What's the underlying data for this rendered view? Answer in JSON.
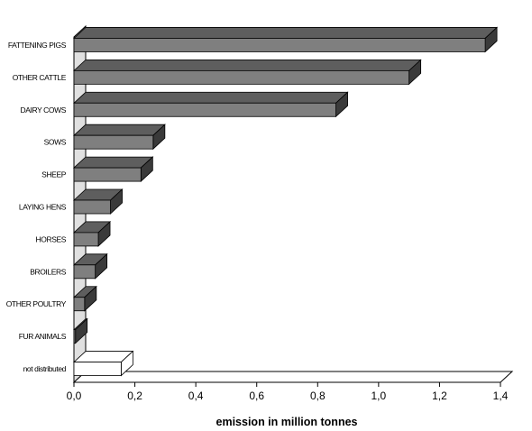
{
  "chart_data": {
    "type": "bar",
    "orientation": "horizontal",
    "three_d": true,
    "categories": [
      "FATTENING PIGS",
      "OTHER CATTLE",
      "DAIRY COWS",
      "SOWS",
      "SHEEP",
      "LAYING HENS",
      "HORSES",
      "BROILERS",
      "OTHER POULTRY",
      "FUR ANIMALS",
      "not distributed"
    ],
    "values": [
      1.35,
      1.1,
      0.86,
      0.26,
      0.22,
      0.12,
      0.08,
      0.07,
      0.035,
      0.005,
      0.155
    ],
    "xlabel": "emission in million tonnes",
    "ylabel": "",
    "xlim": [
      0,
      1.4
    ],
    "xticks": [
      "0,0",
      "0,2",
      "0,4",
      "0,6",
      "0,8",
      "1,0",
      "1,2",
      "1,4"
    ],
    "legend": "none",
    "grid": false,
    "colors": {
      "bar_front": "#7f7f7f",
      "bar_top": "#5e5e5e",
      "bar_side": "#3a3a3a",
      "unfilled_bar": "#ffffff",
      "wall": "#e0e0e0",
      "axis": "#000000"
    },
    "unfilled_categories": [
      "not distributed"
    ]
  }
}
